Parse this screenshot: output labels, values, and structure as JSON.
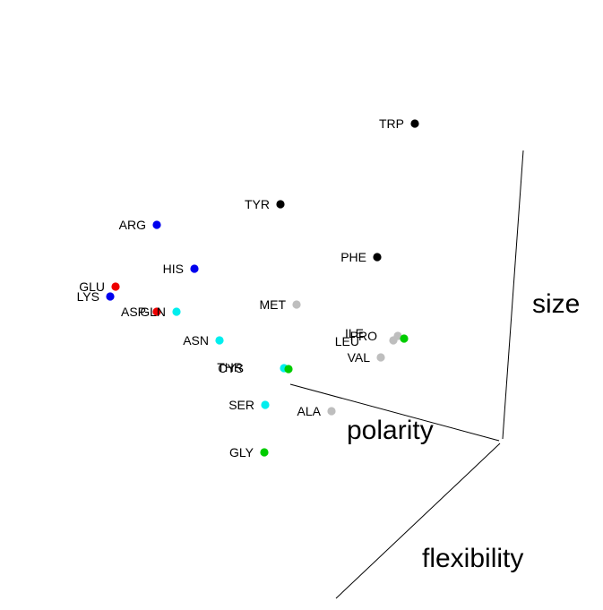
{
  "chart_data": {
    "type": "scatter",
    "subtype": "3d-scatter",
    "axes": [
      "size",
      "polarity",
      "flexibility"
    ],
    "axis_titles": {
      "size": "size",
      "polarity": "polarity",
      "flexibility": "flexibility"
    },
    "colors": {
      "black": "#000000",
      "blue": "#0000ee",
      "red": "#ee0000",
      "cyan": "#00eeee",
      "gray": "#bebebe",
      "green": "#00cc00"
    },
    "points": [
      {
        "label": "TRP",
        "color": "black"
      },
      {
        "label": "TYR",
        "color": "black"
      },
      {
        "label": "PHE",
        "color": "black"
      },
      {
        "label": "ARG",
        "color": "blue"
      },
      {
        "label": "HIS",
        "color": "blue"
      },
      {
        "label": "LYS",
        "color": "blue"
      },
      {
        "label": "GLU",
        "color": "red"
      },
      {
        "label": "ASP",
        "color": "red"
      },
      {
        "label": "GLN",
        "color": "cyan"
      },
      {
        "label": "ASN",
        "color": "cyan"
      },
      {
        "label": "THR",
        "color": "cyan"
      },
      {
        "label": "SER",
        "color": "cyan"
      },
      {
        "label": "MET",
        "color": "gray"
      },
      {
        "label": "ILE",
        "color": "gray"
      },
      {
        "label": "LEU",
        "color": "gray"
      },
      {
        "label": "VAL",
        "color": "gray"
      },
      {
        "label": "ALA",
        "color": "gray"
      },
      {
        "label": "PRO",
        "color": "green"
      },
      {
        "label": "CYS",
        "color": "green"
      },
      {
        "label": "GLY",
        "color": "green"
      }
    ]
  }
}
